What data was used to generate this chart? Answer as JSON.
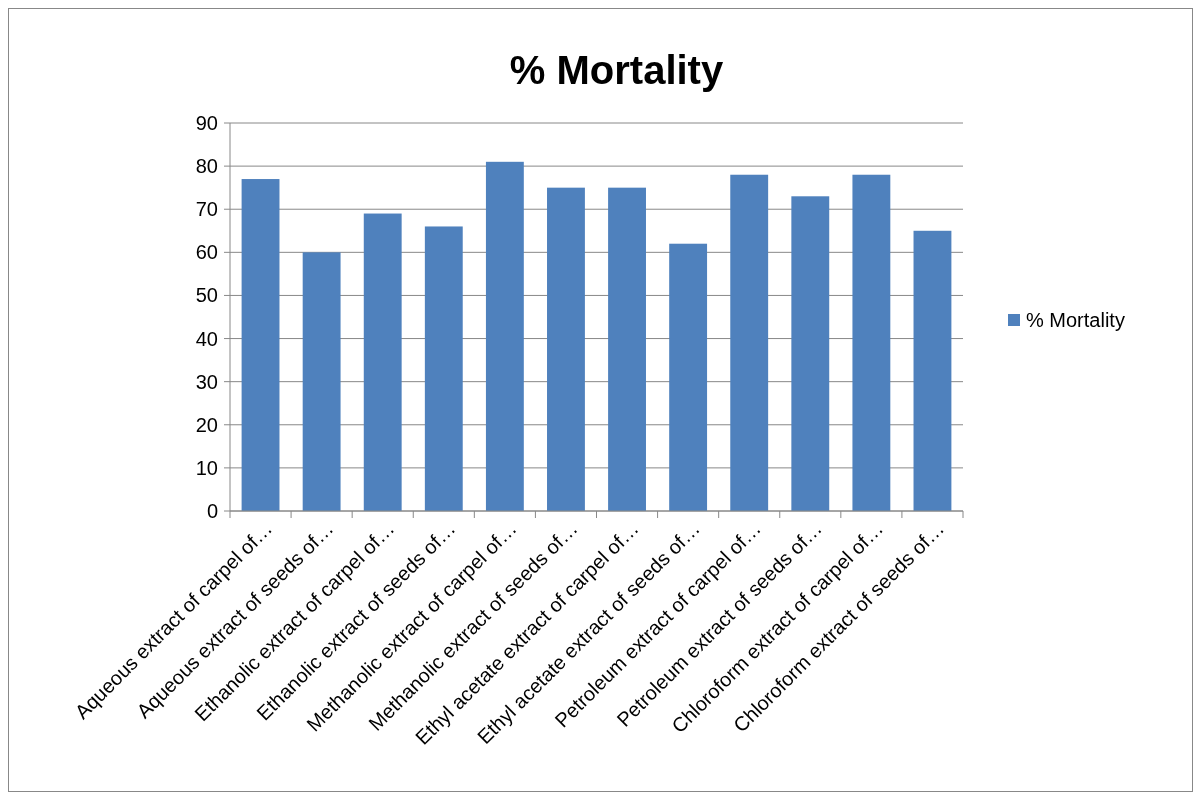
{
  "chart_data": {
    "type": "bar",
    "title": "%  Mortality",
    "categories": [
      "Aqueous extract of carpel of…",
      "Aqueous extract of seeds  of…",
      "Ethanolic extract of carpel of…",
      "Ethanolic extract of seeds of…",
      "Methanolic extract of carpel of…",
      "Methanolic extract of seeds of…",
      "Ethyl acetate extract of carpel of…",
      "Ethyl acetate extract of seeds of…",
      "Petroleum extract of carpel of…",
      "Petroleum extract of seeds of…",
      "Chloroform extract of carpel of…",
      "Chloroform extract of seeds of…"
    ],
    "series": [
      {
        "name": "%  Mortality",
        "color": "#4f81bd",
        "values": [
          77,
          60,
          69,
          66,
          81,
          75,
          75,
          62,
          78,
          73,
          78,
          65
        ]
      }
    ],
    "ylim": [
      0,
      90
    ],
    "yticks": [
      0,
      10,
      20,
      30,
      40,
      50,
      60,
      70,
      80,
      90
    ],
    "grid": "y",
    "legend": "right"
  }
}
